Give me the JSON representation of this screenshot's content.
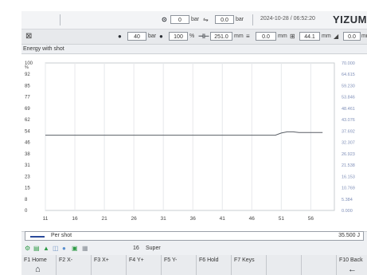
{
  "header_top": {
    "cycle_icon": "cycle-gauge-icon",
    "cycle_value": "0",
    "cycle_unit": "bar",
    "flow_icon": "flow-icon",
    "flow_value": "0.0",
    "flow_unit": "bar",
    "datetime": "2024-10-28 / 06:52:20",
    "brand": "YIZUMI"
  },
  "header_second": {
    "mold_icon": "mold-icon",
    "pressure_value": "40",
    "pressure_unit": "bar",
    "speed_value": "100",
    "speed_unit": "%",
    "screw_position": "251.0",
    "screw_unit": "mm",
    "ejector_value": "0.0",
    "ejector_unit": "mm",
    "mold_position": "44.1",
    "mold_unit": "mm",
    "nozzle_value": "0.0",
    "nozzle_unit": "mm"
  },
  "chart_title": "Energy with shot",
  "chart_data": {
    "type": "line",
    "title": "Energy with shot",
    "x_ticks": [
      "11",
      "16",
      "21",
      "26",
      "31",
      "36",
      "41",
      "46",
      "51",
      "56"
    ],
    "y_left_label": "%",
    "y_left_ticks": [
      "100",
      "92",
      "85",
      "77",
      "69",
      "62",
      "54",
      "46",
      "38",
      "31",
      "23",
      "15",
      "8",
      "0"
    ],
    "y_right_ticks": [
      "70.000",
      "64.615",
      "59.230",
      "53.846",
      "48.461",
      "43.076",
      "37.692",
      "32.307",
      "26.923",
      "21.538",
      "16.153",
      "10.769",
      "5.384",
      "0.000"
    ],
    "ylim": [
      0,
      100
    ],
    "xlim": [
      11,
      60
    ],
    "grid": true,
    "series": [
      {
        "name": "Per shot",
        "color": "#5a5f66",
        "x": [
          11,
          13,
          15,
          17,
          19,
          21,
          23,
          25,
          27,
          29,
          31,
          33,
          35,
          37,
          39,
          41,
          43,
          45,
          47,
          49,
          50,
          51,
          52,
          53,
          54,
          55,
          56,
          57,
          58
        ],
        "y": [
          51,
          51,
          51,
          51,
          51,
          51,
          51,
          51,
          51,
          51,
          51,
          51,
          51,
          51,
          51,
          51,
          51,
          51,
          51,
          51,
          51,
          52.5,
          53.3,
          53.3,
          52.8,
          52.8,
          52.8,
          52.8,
          52.8
        ]
      }
    ]
  },
  "legend": {
    "series_label": "Per shot",
    "current_value": "35.500 J"
  },
  "status_bar": {
    "icons": [
      "motor-icon",
      "heater-icon",
      "alarm-icon",
      "chart-icon",
      "oil-icon",
      "lock-icon",
      "robot-icon"
    ],
    "shot_number": "16",
    "user_level": "Super"
  },
  "function_keys": [
    {
      "label": "F1 Home",
      "icon": "home-icon",
      "glyph": "⌂"
    },
    {
      "label": "F2 X-",
      "icon": "",
      "glyph": ""
    },
    {
      "label": "F3 X+",
      "icon": "",
      "glyph": ""
    },
    {
      "label": "F4 Y+",
      "icon": "",
      "glyph": ""
    },
    {
      "label": "F5 Y-",
      "icon": "",
      "glyph": ""
    },
    {
      "label": "F6 Hold",
      "icon": "",
      "glyph": ""
    },
    {
      "label": "F7 Keys",
      "icon": "",
      "glyph": ""
    },
    {
      "label": "",
      "icon": "",
      "glyph": ""
    },
    {
      "label": "",
      "icon": "",
      "glyph": ""
    },
    {
      "label": "F10 Back",
      "icon": "back-arrow-icon",
      "glyph": "←"
    }
  ]
}
